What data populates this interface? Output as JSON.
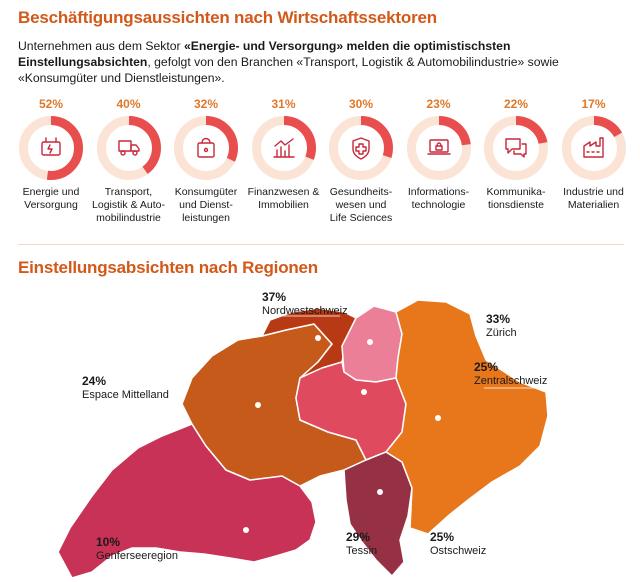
{
  "header": {
    "title": "Beschäftigungsaussichten nach Wirtschaftssektoren",
    "intro_prefix": "Unternehmen aus dem Sektor ",
    "intro_bold": "«Energie- und Versorgung» melden die optimistischsten Einstellungsabsichten",
    "intro_suffix": ", gefolgt von den Branchen «Transport, Logistik & Automobilindustrie» sowie «Konsumgüter und Dienstleistungen»."
  },
  "colors": {
    "accent": "#d2591a",
    "donut_track": "#fbe4d5",
    "donut_fill": "#e94e4e",
    "icon": "#c8283c"
  },
  "regions_title": "Einstellungsabsichten nach Regionen",
  "chart_data": [
    {
      "type": "pie",
      "title": "Beschäftigungsaussichten nach Wirtschaftssektoren",
      "categories": [
        "Energie und Versorgung",
        "Transport, Logistik & Automobilindustrie",
        "Konsumgüter und Dienstleistungen",
        "Finanzwesen & Immobilien",
        "Gesundheitswesen und Life Sciences",
        "Informationstechnologie",
        "Kommunikationsdienste",
        "Industrie und Materialien"
      ],
      "values": [
        52,
        40,
        32,
        31,
        30,
        23,
        22,
        17
      ],
      "value_labels": [
        "52%",
        "40%",
        "32%",
        "31%",
        "30%",
        "23%",
        "22%",
        "17%"
      ],
      "display_labels": [
        "Energie und\nVersorgung",
        "Transport,\nLogistik & Auto-\nmobilindustrie",
        "Konsumgüter\nund Dienst-\nleistungen",
        "Finanzwesen &\nImmobilien",
        "Gesundheits-\nwesen und\nLife Sciences",
        "Informations-\ntechnologie",
        "Kommunika-\ntionsdienste",
        "Industrie und\nMaterialien"
      ],
      "icons": [
        "energy-icon",
        "truck-icon",
        "shopping-bag-icon",
        "finance-chart-icon",
        "health-cross-icon",
        "laptop-lock-icon",
        "chat-bubbles-icon",
        "factory-icon"
      ]
    },
    {
      "type": "map",
      "title": "Einstellungsabsichten nach Regionen",
      "regions": [
        {
          "name": "Nordwestschweiz",
          "value": 37,
          "label": "37%",
          "color": "#b83a14"
        },
        {
          "name": "Zürich",
          "value": 33,
          "label": "33%",
          "color": "#ec7f98"
        },
        {
          "name": "Zentralschweiz",
          "value": 25,
          "label": "25%",
          "color": "#df4a5f"
        },
        {
          "name": "Espace Mittelland",
          "value": 24,
          "label": "24%",
          "color": "#c65a1a"
        },
        {
          "name": "Genferseeregion",
          "value": 10,
          "label": "10%",
          "color": "#e8761b"
        },
        {
          "name": "Tessin",
          "value": 29,
          "label": "29%",
          "color": "#c83256"
        },
        {
          "name": "Ostschweiz",
          "value": 25,
          "label": "25%",
          "color": "#963045"
        }
      ]
    }
  ]
}
